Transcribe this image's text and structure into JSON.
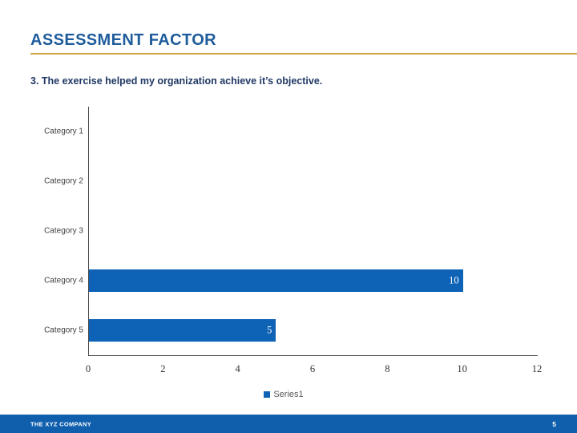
{
  "slide": {
    "title": "ASSESSMENT FACTOR",
    "subtitle": "3. The exercise helped my organization achieve it’s objective.",
    "footer": {
      "company": "THE XYZ COMPANY",
      "page_number": "5"
    }
  },
  "chart_data": {
    "type": "bar",
    "orientation": "horizontal",
    "categories": [
      "Category 1",
      "Category 2",
      "Category 3",
      "Category 4",
      "Category 5"
    ],
    "values": [
      0,
      0,
      0,
      10,
      5
    ],
    "series": [
      {
        "name": "Series1",
        "values": [
          0,
          0,
          0,
          10,
          5
        ]
      }
    ],
    "series_name": "Series1",
    "x_ticks": [
      0,
      2,
      4,
      6,
      8,
      10,
      12
    ],
    "xlim": [
      0,
      12
    ],
    "xlabel": "",
    "ylabel": "",
    "title": "",
    "grid": false,
    "legend_position": "bottom",
    "data_labels_visible": true
  },
  "colors": {
    "title_blue": "#1E5C9B",
    "subtitle_navy": "#1F3864",
    "rule_gold": "#D3A447",
    "bar_blue": "#0E63B6",
    "footer_blue": "#0F5FAD",
    "axis_text": "#404040",
    "legend_text": "#595959"
  }
}
